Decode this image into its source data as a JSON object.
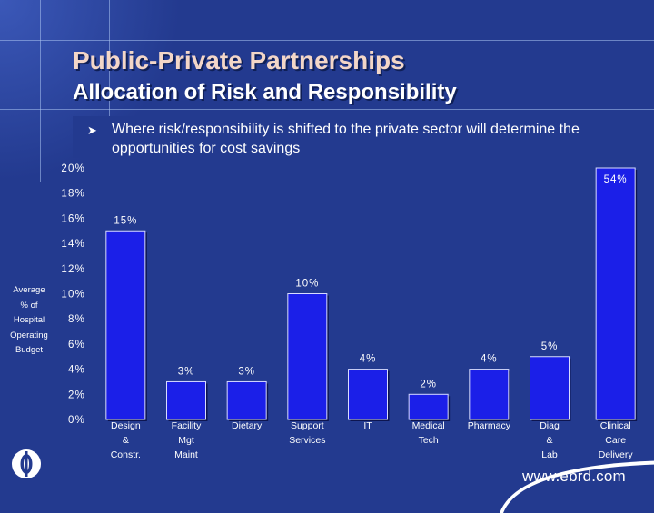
{
  "header": {
    "title": "Public-Private Partnerships",
    "subtitle": "Allocation of Risk and Responsibility"
  },
  "bullet": {
    "text": "Where risk/responsibility is shifted to the private sector will determine the opportunities for cost savings"
  },
  "footer": {
    "url": "www.ebrd.com"
  },
  "colors": {
    "background": "#233a8f",
    "bar": "#1b1fe8",
    "title": "#f3d6c8"
  },
  "chart_data": {
    "type": "bar",
    "ylabel": "Average % of Hospital Operating Budget",
    "ylabel_lines": [
      "Average",
      "% of",
      "Hospital",
      "Operating",
      "Budget"
    ],
    "ylim": [
      0,
      20
    ],
    "yticks": [
      "0%",
      "2%",
      "4%",
      "6%",
      "8%",
      "10%",
      "12%",
      "14%",
      "16%",
      "18%",
      "20%"
    ],
    "categories": [
      [
        "Design",
        "&",
        "Constr."
      ],
      [
        "Facility",
        "Mgt",
        "Maint"
      ],
      [
        "Dietary"
      ],
      [
        "Support",
        "Services"
      ],
      [
        "IT"
      ],
      [
        "Medical",
        "Tech"
      ],
      [
        "Pharmacy"
      ],
      [
        "Diag",
        "&",
        "Lab"
      ],
      [
        "Clinical",
        "Care",
        "Delivery"
      ]
    ],
    "values": [
      15,
      3,
      3,
      10,
      4,
      2,
      4,
      5,
      54
    ],
    "data_labels": [
      "15%",
      "3%",
      "3%",
      "10%",
      "4%",
      "2%",
      "4%",
      "5%",
      "54%"
    ],
    "grid": false,
    "legend": "none"
  }
}
